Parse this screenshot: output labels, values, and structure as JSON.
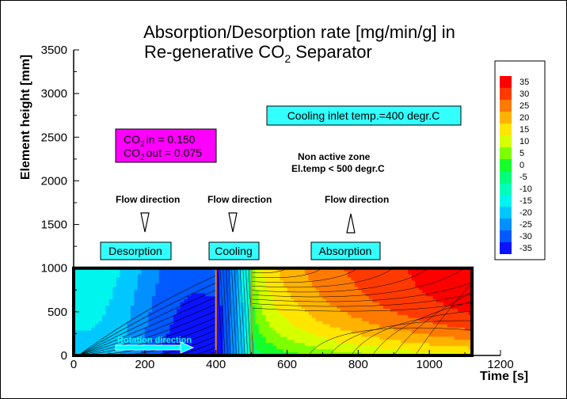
{
  "chart_data": {
    "type": "heatmap",
    "title_line1": "Absorption/Desorption rate [mg/min/g] in",
    "title_line2_prefix": "Re-generative CO",
    "title_line2_sub": "2",
    "title_line2_suffix": " Separator",
    "xlabel": "Time [s]",
    "ylabel": "Element height [mm]",
    "xlim": [
      0,
      1200
    ],
    "ylim": [
      0,
      3500
    ],
    "xticks": [
      "0",
      "200",
      "400",
      "600",
      "800",
      "1000",
      "1200"
    ],
    "yticks": [
      "0",
      "500",
      "1000",
      "1500",
      "2000",
      "2500",
      "3000",
      "3500"
    ],
    "domain": {
      "x": [
        0,
        1120
      ],
      "y": [
        0,
        1000
      ]
    },
    "zone_boundaries": [
      400,
      500
    ],
    "zones": [
      {
        "name": "Desorption",
        "x_range": [
          0,
          400
        ],
        "flow": "down"
      },
      {
        "name": "Cooling",
        "x_range": [
          400,
          500
        ],
        "flow": "down"
      },
      {
        "name": "Absorption",
        "x_range": [
          500,
          1120
        ],
        "flow": "up"
      }
    ],
    "levels": [
      35,
      30,
      25,
      20,
      15,
      10,
      5,
      0,
      -5,
      -10,
      -15,
      -20,
      -25,
      -30,
      -35
    ],
    "level_labels": [
      "35",
      "30",
      "25",
      "20",
      "15",
      "10",
      "5",
      "0",
      "-5",
      "-10",
      "-15",
      "-20",
      "-25",
      "-30",
      "-35"
    ],
    "level_colors": [
      "#ff0000",
      "#ff3a00",
      "#ff7a00",
      "#ffb300",
      "#ffe500",
      "#d6ff00",
      "#7dff00",
      "#15ff2b",
      "#00ff7a",
      "#00ffb8",
      "#00f5ee",
      "#00c8ff",
      "#0090ff",
      "#005aff",
      "#0a12ff"
    ]
  },
  "annotations": {
    "flow_direction_label": "Flow direction",
    "desorption": "Desorption",
    "cooling": "Cooling",
    "absorption": "Absorption",
    "cooling_inlet": "Cooling inlet temp.=400 degr.C",
    "non_active_line1": "Non active zone",
    "non_active_line2": "El.temp < 500 degr.C",
    "co2_in_prefix": "CO",
    "co2_in_sub": "2",
    "co2_in_suffix": "in  = 0.150",
    "co2_out_prefix": "CO",
    "co2_out_sub": "2",
    "co2_out_suffix": "out = 0.075",
    "rotation_direction": "Rotation direction"
  },
  "colors": {
    "label_box": "#33ffff",
    "co2_box": "#ff00ff",
    "zone_line": "#ff7f00",
    "rotation_text": "#00ffff"
  }
}
